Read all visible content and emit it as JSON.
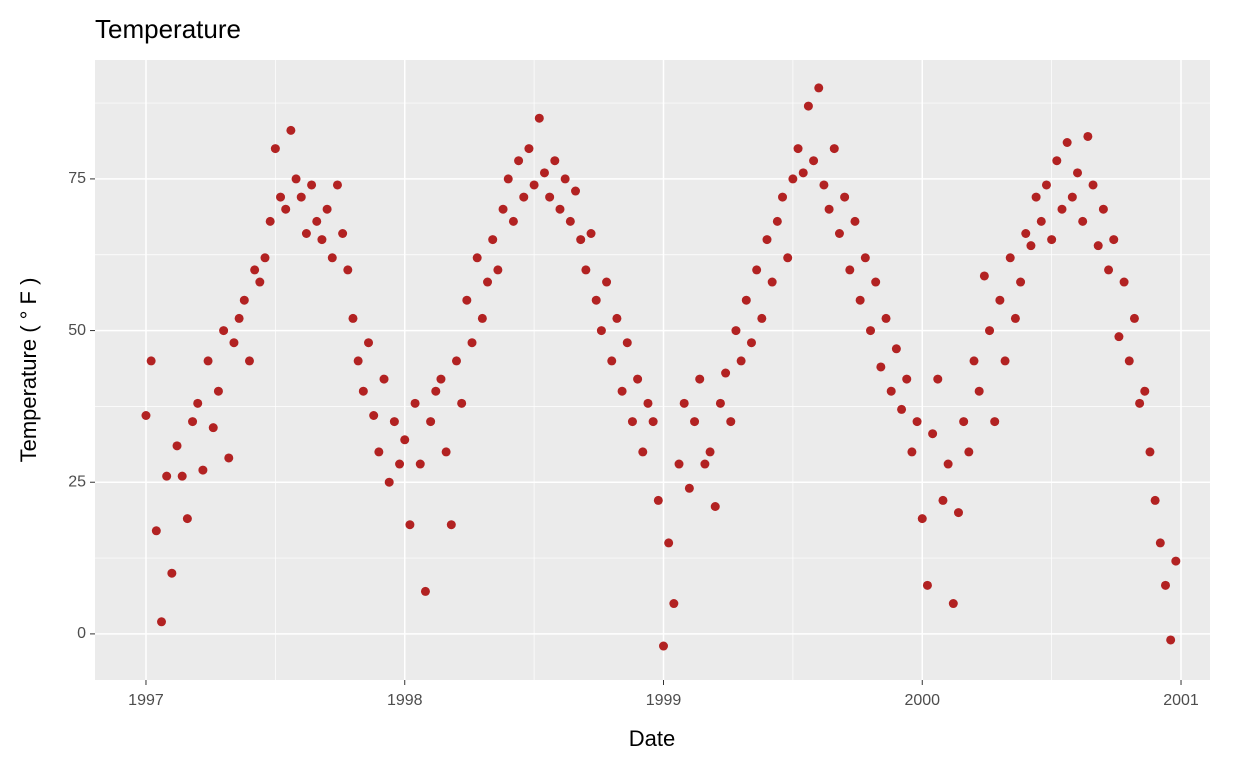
{
  "chart_data": {
    "type": "scatter",
    "title": "Temperature",
    "x_label": "Date",
    "y_label": "Temperature ( ° F )",
    "color": "#B22222",
    "xlim": [
      1996.803,
      2001.112
    ],
    "ylim": [
      -7.6,
      94.6
    ],
    "xticks": [
      1997,
      1998,
      1999,
      2000,
      2001
    ],
    "yticks": [
      0,
      25,
      50,
      75
    ],
    "x_minor_ticks": [
      1997.5,
      1998.5,
      1999.5,
      2000.5
    ],
    "y_minor_ticks": [
      12.5,
      37.5,
      62.5,
      87.5
    ],
    "grid": true,
    "x": [
      1997,
      1997.02,
      1997.04,
      1997.06,
      1997.08,
      1997.1,
      1997.12,
      1997.14,
      1997.16,
      1997.18,
      1997.2,
      1997.22,
      1997.24,
      1997.26,
      1997.28,
      1997.3,
      1997.32,
      1997.34,
      1997.36,
      1997.38,
      1997.4,
      1997.42,
      1997.44,
      1997.46,
      1997.48,
      1997.5,
      1997.52,
      1997.54,
      1997.56,
      1997.58,
      1997.6,
      1997.62,
      1997.64,
      1997.66,
      1997.68,
      1997.7,
      1997.72,
      1997.74,
      1997.76,
      1997.78,
      1997.8,
      1997.82,
      1997.84,
      1997.86,
      1997.88,
      1997.9,
      1997.92,
      1997.94,
      1997.96,
      1997.98,
      1998,
      1998.02,
      1998.04,
      1998.06,
      1998.08,
      1998.1,
      1998.12,
      1998.14,
      1998.16,
      1998.18,
      1998.2,
      1998.22,
      1998.24,
      1998.26,
      1998.28,
      1998.3,
      1998.32,
      1998.34,
      1998.36,
      1998.38,
      1998.4,
      1998.42,
      1998.44,
      1998.46,
      1998.48,
      1998.5,
      1998.52,
      1998.54,
      1998.56,
      1998.58,
      1998.6,
      1998.62,
      1998.64,
      1998.66,
      1998.68,
      1998.7,
      1998.72,
      1998.74,
      1998.76,
      1998.78,
      1998.8,
      1998.82,
      1998.84,
      1998.86,
      1998.88,
      1998.9,
      1998.92,
      1998.94,
      1998.96,
      1998.98,
      1999,
      1999.02,
      1999.04,
      1999.06,
      1999.08,
      1999.1,
      1999.12,
      1999.14,
      1999.16,
      1999.18,
      1999.2,
      1999.22,
      1999.24,
      1999.26,
      1999.28,
      1999.3,
      1999.32,
      1999.34,
      1999.36,
      1999.38,
      1999.4,
      1999.42,
      1999.44,
      1999.46,
      1999.48,
      1999.5,
      1999.52,
      1999.54,
      1999.56,
      1999.58,
      1999.6,
      1999.62,
      1999.64,
      1999.66,
      1999.68,
      1999.7,
      1999.72,
      1999.74,
      1999.76,
      1999.78,
      1999.8,
      1999.82,
      1999.84,
      1999.86,
      1999.88,
      1999.9,
      1999.92,
      1999.94,
      1999.96,
      1999.98,
      2000,
      2000.02,
      2000.04,
      2000.06,
      2000.08,
      2000.1,
      2000.12,
      2000.14,
      2000.16,
      2000.18,
      2000.2,
      2000.22,
      2000.24,
      2000.26,
      2000.28,
      2000.3,
      2000.32,
      2000.34,
      2000.36,
      2000.38,
      2000.4,
      2000.42,
      2000.44,
      2000.46,
      2000.48,
      2000.5,
      2000.52,
      2000.54,
      2000.56,
      2000.58,
      2000.6,
      2000.62,
      2000.64,
      2000.66,
      2000.68,
      2000.7,
      2000.72,
      2000.74,
      2000.76,
      2000.78,
      2000.8,
      2000.82,
      2000.84,
      2000.86,
      2000.88,
      2000.9,
      2000.92,
      2000.94,
      2000.96,
      2000.98
    ],
    "values": [
      36,
      45,
      17,
      2,
      26,
      10,
      31,
      26,
      19,
      35,
      38,
      27,
      45,
      34,
      40,
      50,
      29,
      48,
      52,
      55,
      45,
      60,
      58,
      62,
      68,
      80,
      72,
      70,
      83,
      75,
      72,
      66,
      74,
      68,
      65,
      70,
      62,
      74,
      66,
      60,
      52,
      45,
      40,
      48,
      36,
      30,
      42,
      25,
      35,
      28,
      32,
      18,
      38,
      28,
      7,
      35,
      40,
      42,
      30,
      18,
      45,
      38,
      55,
      48,
      62,
      52,
      58,
      65,
      60,
      70,
      75,
      68,
      78,
      72,
      80,
      74,
      85,
      76,
      72,
      78,
      70,
      75,
      68,
      73,
      65,
      60,
      66,
      55,
      50,
      58,
      45,
      52,
      40,
      48,
      35,
      42,
      30,
      38,
      35,
      22,
      -2,
      15,
      5,
      28,
      38,
      24,
      35,
      42,
      28,
      30,
      21,
      38,
      43,
      35,
      50,
      45,
      55,
      48,
      60,
      52,
      65,
      58,
      68,
      72,
      62,
      75,
      80,
      76,
      87,
      78,
      90,
      74,
      70,
      80,
      66,
      72,
      60,
      68,
      55,
      62,
      50,
      58,
      44,
      52,
      40,
      47,
      37,
      42,
      30,
      35,
      19,
      8,
      33,
      42,
      22,
      28,
      5,
      20,
      35,
      30,
      45,
      40,
      59,
      50,
      35,
      55,
      45,
      62,
      52,
      58,
      66,
      64,
      72,
      68,
      74,
      65,
      78,
      70,
      81,
      72,
      76,
      68,
      82,
      74,
      64,
      70,
      60,
      65,
      49,
      58,
      45,
      52,
      38,
      40,
      30,
      22,
      15,
      8,
      -1,
      12
    ]
  }
}
